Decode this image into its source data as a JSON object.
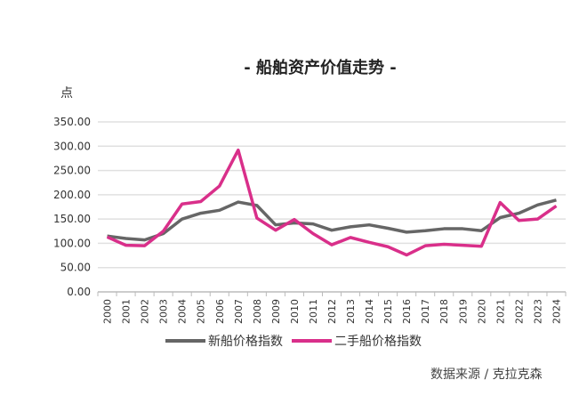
{
  "chart_data": {
    "type": "line",
    "title": "- 船舶资产价值走势 -",
    "ylabel": "点",
    "xlabel": "",
    "ylim": [
      0,
      350
    ],
    "yticks": [
      "0.00",
      "50.00",
      "100.00",
      "150.00",
      "200.00",
      "250.00",
      "300.00",
      "350.00"
    ],
    "grid": true,
    "legend_position": "bottom",
    "categories": [
      "2000",
      "2001",
      "2002",
      "2003",
      "2004",
      "2005",
      "2006",
      "2007",
      "2008",
      "2009",
      "2010",
      "2011",
      "2012",
      "2013",
      "2014",
      "2015",
      "2016",
      "2017",
      "2018",
      "2019",
      "2020",
      "2021",
      "2022",
      "2023",
      "2024"
    ],
    "series": [
      {
        "name": "新船价格指数",
        "color": "#666666",
        "values": [
          115,
          110,
          107,
          120,
          150,
          162,
          168,
          185,
          178,
          138,
          142,
          140,
          127,
          134,
          138,
          131,
          123,
          126,
          130,
          130,
          126,
          153,
          162,
          179,
          189
        ]
      },
      {
        "name": "二手船价格指数",
        "color": "#d92f8a",
        "values": [
          113,
          96,
          95,
          125,
          181,
          186,
          218,
          292,
          152,
          127,
          149,
          120,
          97,
          112,
          102,
          93,
          76,
          95,
          98,
          96,
          94,
          184,
          147,
          150,
          177
        ]
      }
    ]
  },
  "source": "数据来源 / 克拉克森"
}
